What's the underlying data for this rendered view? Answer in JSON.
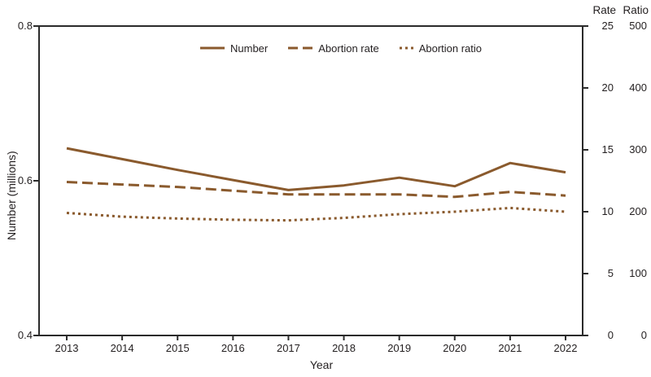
{
  "colors": {
    "line_brown": "#8A5A2D",
    "axis": "#2B2B2B",
    "text": "#231F20",
    "background": "#FFFFFF"
  },
  "chart_data": {
    "type": "line",
    "title": "",
    "x": [
      2013,
      2014,
      2015,
      2016,
      2017,
      2018,
      2019,
      2020,
      2021,
      2022
    ],
    "xlabel": "Year",
    "grid": false,
    "legend_position": "top-center",
    "legend": [
      "Number",
      "Abortion rate",
      "Abortion ratio"
    ],
    "axes": {
      "left": {
        "label": "Number (millions)",
        "range": [
          0.4,
          0.8
        ],
        "ticks": [
          "0.8",
          "0.6",
          "0.4"
        ]
      },
      "right_rate": {
        "label": "Rate",
        "range": [
          0,
          25
        ],
        "ticks": [
          "25",
          "20",
          "15",
          "10",
          "5",
          "0"
        ]
      },
      "right_ratio": {
        "label": "Ratio",
        "range": [
          0,
          500
        ],
        "ticks": [
          "500",
          "400",
          "300",
          "200",
          "100",
          "0"
        ]
      }
    },
    "series": [
      {
        "name": "Number",
        "axis": "left",
        "line_style": "solid",
        "values": [
          0.642,
          0.628,
          0.614,
          0.601,
          0.588,
          0.594,
          0.604,
          0.593,
          0.623,
          0.611
        ]
      },
      {
        "name": "Abortion rate",
        "axis": "right_rate",
        "line_style": "dashed",
        "values": [
          12.4,
          12.2,
          12.0,
          11.7,
          11.4,
          11.4,
          11.4,
          11.2,
          11.6,
          11.3
        ]
      },
      {
        "name": "Abortion ratio",
        "axis": "right_ratio",
        "line_style": "dotted",
        "values": [
          198,
          192,
          189,
          187,
          186,
          190,
          196,
          200,
          206,
          200
        ]
      }
    ]
  }
}
